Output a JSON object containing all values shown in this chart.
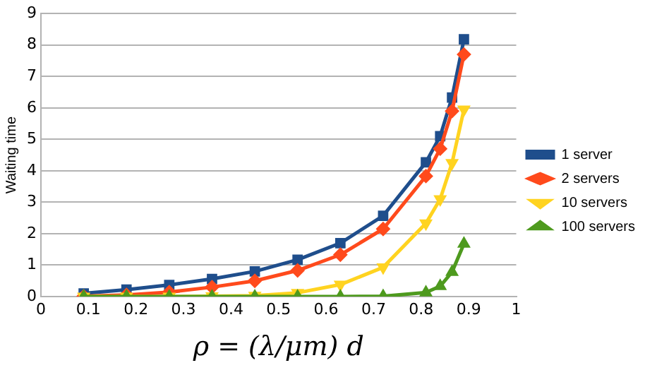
{
  "chart_data": {
    "type": "line",
    "ylabel": "Waiting time",
    "xlabel": "ρ = (λ/μm) d",
    "x": [
      0.09,
      0.18,
      0.27,
      0.36,
      0.45,
      0.54,
      0.63,
      0.72,
      0.81,
      0.84,
      0.865,
      0.89
    ],
    "series": [
      {
        "name": "1 server",
        "color": "#1f4e8c",
        "marker": "square",
        "values": [
          0.1,
          0.22,
          0.37,
          0.56,
          0.8,
          1.17,
          1.7,
          2.57,
          4.27,
          5.1,
          6.33,
          8.18
        ]
      },
      {
        "name": "2 servers",
        "color": "#ff4a1c",
        "marker": "diamond",
        "values": [
          0.01,
          0.05,
          0.14,
          0.3,
          0.5,
          0.83,
          1.33,
          2.15,
          3.83,
          4.7,
          5.9,
          7.7
        ]
      },
      {
        "name": "10 servers",
        "color": "#ffd320",
        "marker": "triangle-down",
        "values": [
          0,
          0,
          0,
          0.01,
          0.03,
          0.12,
          0.38,
          0.93,
          2.33,
          3.1,
          4.25,
          5.95
        ]
      },
      {
        "name": "100 servers",
        "color": "#4e9a1e",
        "marker": "triangle",
        "values": [
          0,
          0,
          0,
          0,
          0,
          0,
          0,
          0.01,
          0.13,
          0.33,
          0.78,
          1.68
        ]
      }
    ],
    "xlim": [
      0,
      1
    ],
    "xticks": [
      0,
      0.1,
      0.2,
      0.3,
      0.4,
      0.5,
      0.6,
      0.7,
      0.8,
      0.9,
      1
    ],
    "ylim": [
      0,
      9
    ],
    "yticks": [
      0,
      1,
      2,
      3,
      4,
      5,
      6,
      7,
      8,
      9
    ],
    "grid": "y",
    "legend": "right",
    "line_style": "solid"
  }
}
